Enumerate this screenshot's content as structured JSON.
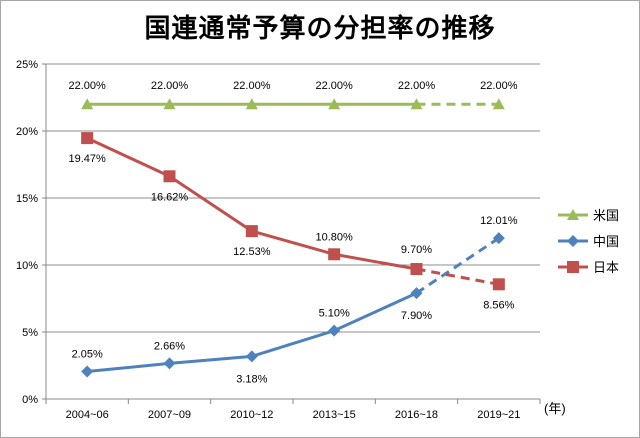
{
  "chart_data": {
    "type": "line",
    "title": "国連通常予算の分担率の推移",
    "categories": [
      "2004~06",
      "2007~09",
      "2010~12",
      "2013~15",
      "2016~18",
      "2019~21"
    ],
    "x_unit_label": "(年)",
    "y_ticks": [
      "0%",
      "5%",
      "10%",
      "15%",
      "20%",
      "25%"
    ],
    "ylim": [
      0,
      25
    ],
    "grid": true,
    "legend_position": "right",
    "series": [
      {
        "name": "米国",
        "color": "#9bbb59",
        "marker": "triangle",
        "values": [
          22.0,
          22.0,
          22.0,
          22.0,
          22.0,
          22.0
        ],
        "labels": [
          "22.00%",
          "22.00%",
          "22.00%",
          "22.00%",
          "22.00%",
          "22.00%"
        ],
        "last_segment_dashed": true
      },
      {
        "name": "中国",
        "color": "#4f81bd",
        "marker": "diamond",
        "values": [
          2.05,
          2.66,
          3.18,
          5.1,
          7.9,
          12.01
        ],
        "labels": [
          "2.05%",
          "2.66%",
          "3.18%",
          "5.10%",
          "7.90%",
          "12.01%"
        ],
        "last_segment_dashed": true
      },
      {
        "name": "日本",
        "color": "#c0504d",
        "marker": "square",
        "values": [
          19.47,
          16.62,
          12.53,
          10.8,
          9.7,
          8.56
        ],
        "labels": [
          "19.47%",
          "16.62%",
          "12.53%",
          "10.80%",
          "9.70%",
          "8.56%"
        ],
        "last_segment_dashed": true
      }
    ]
  }
}
